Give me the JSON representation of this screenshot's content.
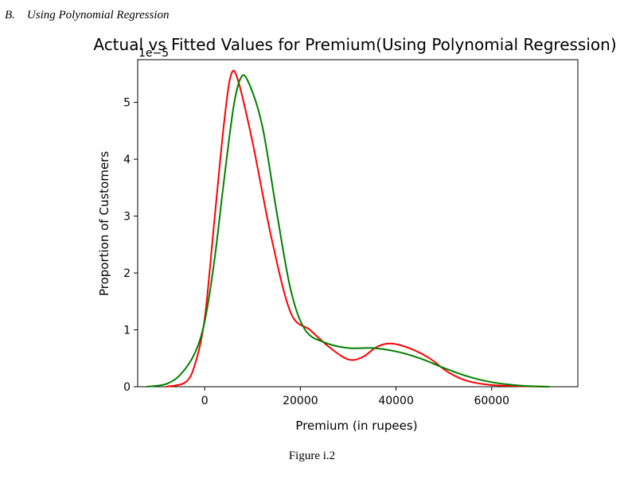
{
  "section_heading": "B.    Using Polynomial Regression",
  "figure_caption": "Figure i.2",
  "chart_data": {
    "type": "line",
    "title": "Actual vs Fitted Values for Premium(Using Polynomial Regression)",
    "xlabel": "Premium (in rupees)",
    "ylabel": "Proportion of Customers",
    "y_scale_label": "1e−5",
    "xlim": [
      -14000,
      78000
    ],
    "ylim": [
      0,
      5.75
    ],
    "x_ticks": [
      0,
      20000,
      40000,
      60000
    ],
    "x_tick_labels": [
      "0",
      "20000",
      "40000",
      "60000"
    ],
    "y_ticks": [
      0,
      1,
      2,
      3,
      4,
      5
    ],
    "y_tick_labels": [
      "0",
      "1",
      "2",
      "3",
      "4",
      "5"
    ],
    "grid": false,
    "series": [
      {
        "color": "#ff0000",
        "x": [
          -8000,
          -4000,
          -2000,
          0,
          2000,
          4000,
          5500,
          7000,
          10000,
          14000,
          18000,
          22000,
          26000,
          30000,
          33000,
          36000,
          39000,
          43000,
          47000,
          51000,
          55000,
          60000,
          66000,
          72000
        ],
        "y": [
          0.0,
          0.08,
          0.4,
          1.2,
          2.9,
          4.6,
          5.48,
          5.38,
          4.3,
          2.6,
          1.3,
          1.0,
          0.7,
          0.48,
          0.52,
          0.7,
          0.76,
          0.67,
          0.5,
          0.25,
          0.1,
          0.03,
          0.01,
          0.0
        ]
      },
      {
        "color": "#008000",
        "x": [
          -12000,
          -8000,
          -5000,
          -2000,
          0,
          2000,
          4000,
          6000,
          7500,
          9000,
          12000,
          15000,
          18000,
          21000,
          25000,
          30000,
          35000,
          40000,
          45000,
          50000,
          55000,
          60000,
          66000,
          72000
        ],
        "y": [
          0.0,
          0.05,
          0.22,
          0.6,
          1.15,
          2.2,
          3.6,
          4.9,
          5.42,
          5.38,
          4.6,
          3.1,
          1.7,
          1.0,
          0.78,
          0.68,
          0.68,
          0.62,
          0.5,
          0.33,
          0.18,
          0.08,
          0.02,
          0.0
        ]
      }
    ]
  }
}
